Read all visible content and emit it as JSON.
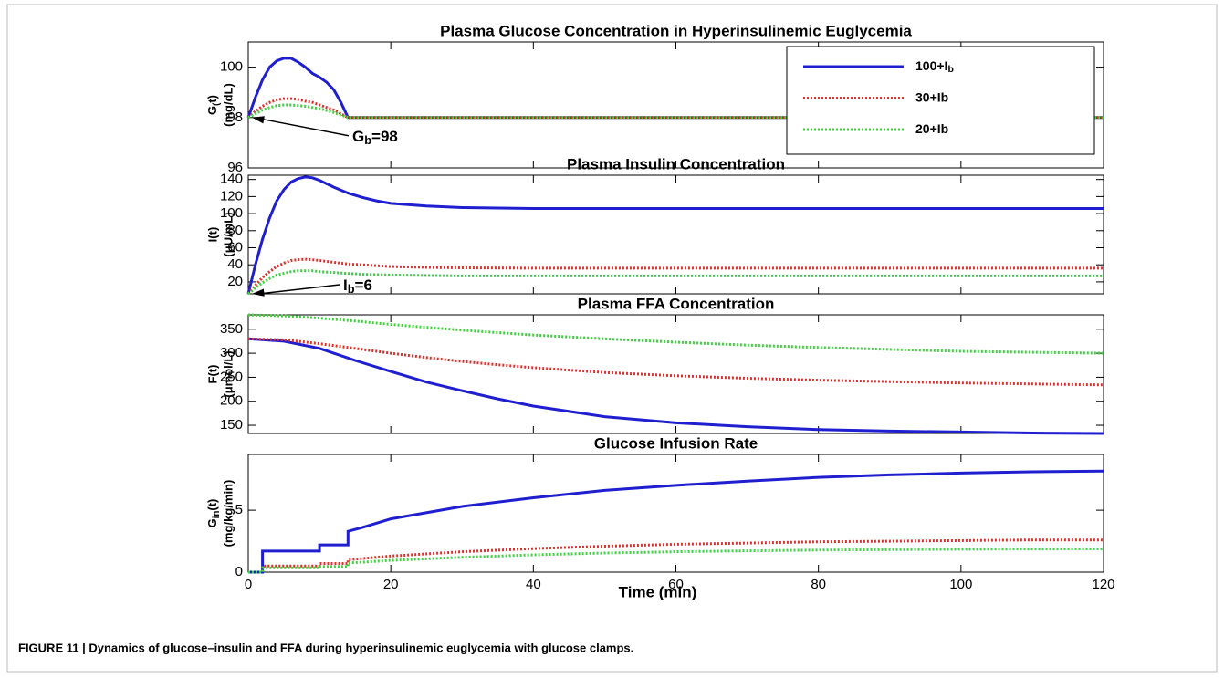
{
  "chart_data": [
    {
      "type": "line",
      "title": "Plasma Glucose Concentration in Hyperinsulinemic Euglycemia",
      "ylabel": [
        "G(t)",
        "(mg/dL)"
      ],
      "annotation": "Gb=98",
      "xlim": [
        0,
        120
      ],
      "xticks": [
        0,
        20,
        40,
        60,
        80,
        100,
        120
      ],
      "ylim": [
        96,
        101
      ],
      "yticks": [
        96,
        98,
        100
      ],
      "legend": "upper right",
      "x": [
        0,
        1,
        2,
        3,
        4,
        5,
        6,
        7,
        8,
        9,
        10,
        11,
        12,
        13,
        14,
        20,
        40,
        60,
        80,
        100,
        120
      ],
      "series": [
        {
          "name": "100+Ib",
          "color": "#1f1fd0",
          "linestyle": "solid",
          "values": [
            98,
            98.8,
            99.5,
            100,
            100.25,
            100.35,
            100.35,
            100.2,
            100,
            99.75,
            99.6,
            99.4,
            99.1,
            98.6,
            98,
            98,
            98,
            98,
            98,
            98,
            98
          ]
        },
        {
          "name": "30+Ib",
          "color": "#e0302a",
          "linestyle": "dotted",
          "values": [
            98,
            98.25,
            98.45,
            98.6,
            98.7,
            98.75,
            98.75,
            98.72,
            98.65,
            98.6,
            98.5,
            98.4,
            98.3,
            98.15,
            98,
            98,
            98,
            98,
            98,
            98,
            98
          ]
        },
        {
          "name": "20+Ib",
          "color": "#3fd23f",
          "linestyle": "dotted",
          "values": [
            98,
            98.15,
            98.3,
            98.4,
            98.47,
            98.5,
            98.5,
            98.48,
            98.45,
            98.4,
            98.35,
            98.28,
            98.2,
            98.1,
            98,
            98,
            98,
            98,
            98,
            98,
            98
          ]
        }
      ]
    },
    {
      "type": "line",
      "title": "Plasma Insulin Concentration",
      "ylabel": [
        "I(t)",
        "(μU/mL)"
      ],
      "annotation": "Ib=6",
      "xlim": [
        0,
        120
      ],
      "xticks": [
        0,
        20,
        40,
        60,
        80,
        100,
        120
      ],
      "ylim": [
        6,
        145
      ],
      "yticks": [
        20,
        40,
        60,
        80,
        100,
        120,
        140
      ],
      "x": [
        0,
        1,
        2,
        3,
        4,
        5,
        6,
        7,
        8,
        9,
        10,
        12,
        14,
        16,
        18,
        20,
        25,
        30,
        40,
        60,
        80,
        100,
        120
      ],
      "series": [
        {
          "name": "100+Ib",
          "color": "#1f1fd0",
          "linestyle": "solid",
          "values": [
            6,
            40,
            70,
            95,
            115,
            128,
            137,
            141,
            143,
            142,
            139,
            131,
            124,
            119,
            115,
            112,
            109,
            107,
            106,
            106,
            106,
            106,
            106
          ]
        },
        {
          "name": "30+Ib",
          "color": "#e0302a",
          "linestyle": "dotted",
          "values": [
            6,
            16,
            25,
            32,
            38,
            42,
            45,
            46,
            46.5,
            46,
            45,
            43,
            41,
            40,
            39,
            38,
            37,
            36.5,
            36,
            36,
            36,
            36,
            36
          ]
        },
        {
          "name": "20+Ib",
          "color": "#3fd23f",
          "linestyle": "dotted",
          "values": [
            6,
            13,
            19,
            24,
            28,
            30,
            32,
            33,
            33,
            33,
            32,
            31,
            30,
            29,
            28.5,
            28,
            27.5,
            27,
            27,
            27,
            27,
            27,
            27
          ]
        }
      ]
    },
    {
      "type": "line",
      "title": "Plasma FFA Concentration",
      "ylabel": [
        "F(t)",
        "(μmol/L)"
      ],
      "xlim": [
        0,
        120
      ],
      "xticks": [
        0,
        20,
        40,
        60,
        80,
        100,
        120
      ],
      "ylim": [
        133,
        380
      ],
      "yticks": [
        150,
        200,
        250,
        300,
        350
      ],
      "x": [
        0,
        5,
        10,
        15,
        20,
        25,
        30,
        35,
        40,
        50,
        60,
        70,
        80,
        90,
        100,
        110,
        120
      ],
      "series": [
        {
          "name": "100+Ib",
          "color": "#1f1fd0",
          "linestyle": "solid",
          "values": [
            330,
            325,
            310,
            285,
            262,
            240,
            222,
            205,
            190,
            168,
            155,
            147,
            141,
            138,
            136,
            134,
            133
          ]
        },
        {
          "name": "30+Ib",
          "color": "#e0302a",
          "linestyle": "dotted",
          "values": [
            330,
            328,
            320,
            310,
            300,
            291,
            283,
            276,
            270,
            260,
            253,
            248,
            244,
            241,
            238,
            236,
            234
          ]
        },
        {
          "name": "20+Ib",
          "color": "#3fd23f",
          "linestyle": "dotted",
          "values": [
            380,
            378,
            373,
            367,
            360,
            354,
            348,
            343,
            338,
            330,
            323,
            317,
            312,
            308,
            304,
            302,
            300
          ]
        }
      ]
    },
    {
      "type": "line",
      "title": "Glucose Infusion Rate",
      "ylabel": [
        "Gin(t)",
        "(mg/kg/min)"
      ],
      "xlabel": "Time (min)",
      "xlim": [
        0,
        120
      ],
      "xticks": [
        0,
        20,
        40,
        60,
        80,
        100,
        120
      ],
      "ylim": [
        0,
        9.5
      ],
      "yticks": [
        0,
        5
      ],
      "x": [
        0,
        2,
        2,
        10,
        10,
        14,
        14,
        16,
        20,
        30,
        40,
        50,
        60,
        70,
        80,
        90,
        100,
        110,
        120
      ],
      "series": [
        {
          "name": "100+Ib",
          "color": "#1f1fd0",
          "linestyle": "solid",
          "values": [
            0,
            0,
            1.7,
            1.7,
            2.2,
            2.2,
            3.3,
            3.6,
            4.3,
            5.3,
            6.0,
            6.6,
            7.0,
            7.35,
            7.65,
            7.85,
            8.0,
            8.1,
            8.15
          ]
        },
        {
          "name": "30+Ib",
          "color": "#e0302a",
          "linestyle": "dotted",
          "values": [
            0,
            0,
            0.5,
            0.5,
            0.7,
            0.7,
            1.0,
            1.1,
            1.3,
            1.65,
            1.9,
            2.1,
            2.25,
            2.35,
            2.45,
            2.5,
            2.55,
            2.6,
            2.6
          ]
        },
        {
          "name": "20+Ib",
          "color": "#3fd23f",
          "linestyle": "dotted",
          "values": [
            0,
            0,
            0.35,
            0.35,
            0.45,
            0.45,
            0.75,
            0.8,
            0.95,
            1.2,
            1.4,
            1.55,
            1.65,
            1.72,
            1.78,
            1.82,
            1.85,
            1.87,
            1.88
          ]
        }
      ]
    }
  ],
  "caption": "FIGURE 11 | Dynamics of glucose–insulin and FFA during hyperinsulinemic euglycemia with glucose clamps."
}
